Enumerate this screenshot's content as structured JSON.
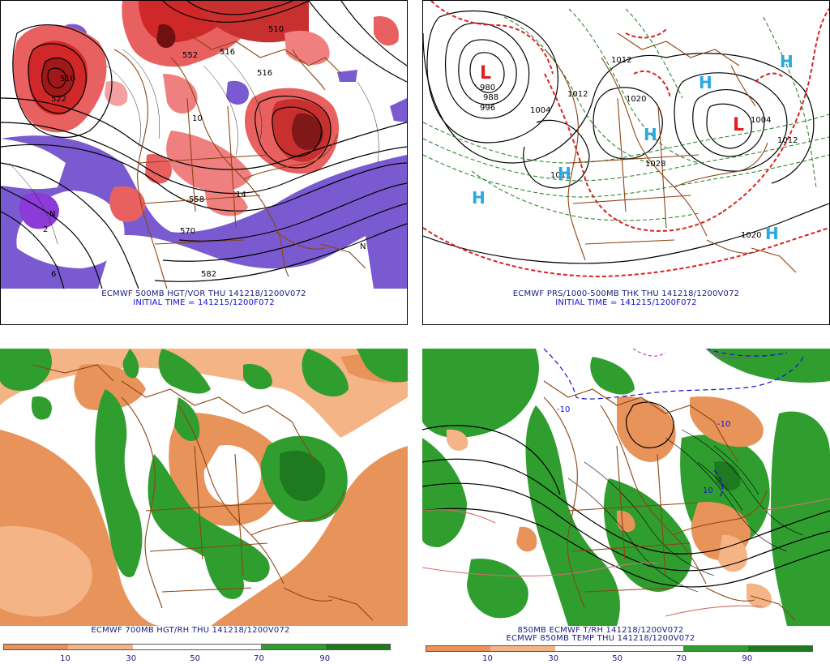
{
  "colors": {
    "rh_dry": "#e8935a",
    "rh_dry_light": "#f4b486",
    "rh_moist": "#2f9e2f",
    "rh_moist_dark": "#1e7a1e",
    "vor_red": "#d02828",
    "vor_pink": "#f08080",
    "vor_purple": "#7a5ad0",
    "high_marker": "#2aa8e0",
    "low_marker": "#e02020",
    "border_brown": "#8b4513"
  },
  "panels": {
    "top_left": {
      "caption_line1": "ECMWF 500MB HGT/VOR THU 141218/1200V072",
      "caption_line2": "INITIAL TIME = 141215/1200F072",
      "contour_labels": [
        "510",
        "522",
        "516",
        "510",
        "552",
        "516",
        "558",
        "570",
        "582",
        "10",
        "14",
        "2",
        "6",
        "N",
        "N"
      ]
    },
    "top_right": {
      "caption_line1": "ECMWF PRS/1000-500MB THK THU 141218/1200V072",
      "caption_line2": "INITIAL TIME = 141215/1200F072",
      "pressure_labels": [
        "980",
        "988",
        "996",
        "1004",
        "1012",
        "1012",
        "1020",
        "1028",
        "1004",
        "1012",
        "1020",
        "1012"
      ],
      "high_symbols": [
        "H",
        "H",
        "H",
        "H",
        "H",
        "H"
      ],
      "low_symbols": [
        "L",
        "L"
      ]
    },
    "bottom_left": {
      "caption_line1": "ECMWF 700MB HGT/RH THU 141218/1200V072",
      "colorbar_ticks": [
        "10",
        "30",
        "50",
        "70",
        "90"
      ]
    },
    "bottom_right": {
      "caption_line1": "850MB ECMWF T/RH 141218/1200V072",
      "caption_line2": "ECMWF 850MB TEMP THU 141218/1200V072",
      "colorbar_ticks": [
        "10",
        "30",
        "50",
        "70",
        "90"
      ],
      "contour_labels": [
        "-10",
        "-10",
        "10"
      ]
    }
  }
}
